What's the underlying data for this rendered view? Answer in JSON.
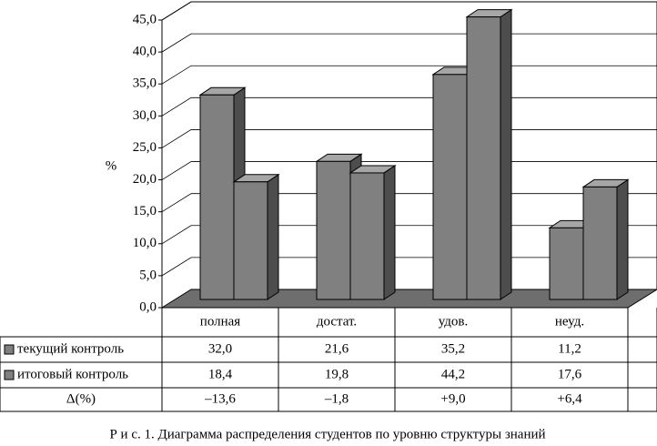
{
  "chart_data": {
    "type": "bar3d",
    "y_label": "%",
    "categories": [
      "полная",
      "достат.",
      "удов.",
      "неуд."
    ],
    "series": [
      {
        "name": "текущий контроль",
        "color": "#808080",
        "values": [
          32.0,
          21.6,
          35.2,
          11.2
        ],
        "value_labels": [
          "32,0",
          "21,6",
          "35,2",
          "11,2"
        ]
      },
      {
        "name": "итоговый контроль",
        "color": "#808080",
        "values": [
          18.4,
          19.8,
          44.2,
          17.6
        ],
        "value_labels": [
          "18,4",
          "19,8",
          "44,2",
          "17,6"
        ]
      }
    ],
    "delta": {
      "name": "Δ(%)",
      "values": [
        -13.6,
        -1.8,
        9.0,
        6.4
      ],
      "value_labels": [
        "–13,6",
        "–1,8",
        "+9,0",
        "+6,4"
      ]
    },
    "ylim": [
      0,
      45
    ],
    "yticks": [
      {
        "value": 0,
        "label": "0,0"
      },
      {
        "value": 5,
        "label": "5,0"
      },
      {
        "value": 10,
        "label": "10,0"
      },
      {
        "value": 15,
        "label": "15,0"
      },
      {
        "value": 20,
        "label": "20,0"
      },
      {
        "value": 25,
        "label": "25,0"
      },
      {
        "value": 30,
        "label": "30,0"
      },
      {
        "value": 35,
        "label": "35,0"
      },
      {
        "value": 40,
        "label": "40,0"
      },
      {
        "value": 45,
        "label": "45,0"
      }
    ],
    "grid": true,
    "caption": "Р и с.  1. Диаграмма распределения студентов по уровню структуры знаний"
  }
}
